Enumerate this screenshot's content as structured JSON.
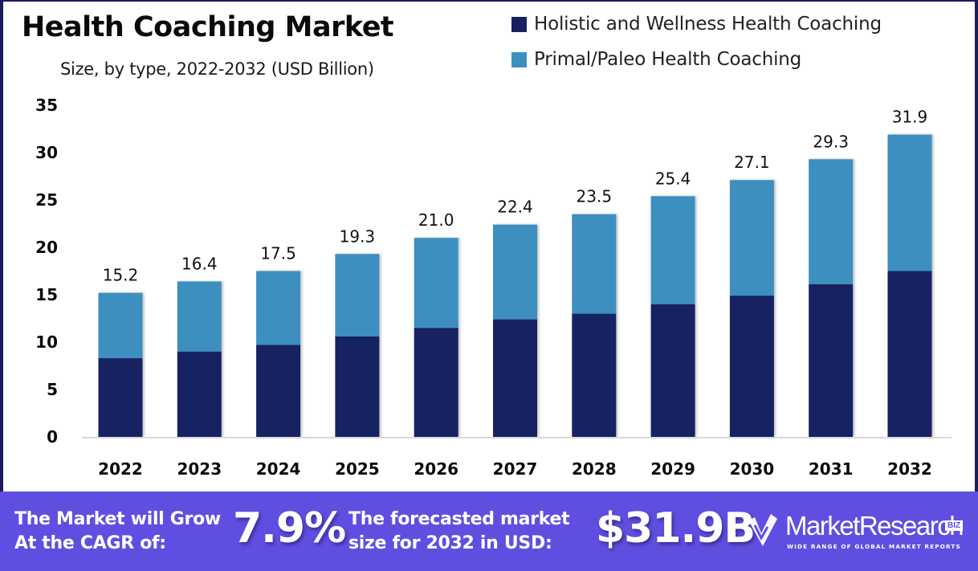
{
  "header": {
    "title": "Health Coaching Market",
    "subtitle": "Size, by type, 2022-2032 (USD Billion)"
  },
  "legend": [
    {
      "label": "Holistic and Wellness Health Coaching",
      "color": "#182062"
    },
    {
      "label": "Primal/Paleo Health Coaching",
      "color": "#3d8fc0"
    }
  ],
  "chart_data": {
    "type": "bar",
    "stacked": true,
    "title": "Health Coaching Market",
    "subtitle": "Size, by type, 2022-2032 (USD Billion)",
    "xlabel": "",
    "ylabel": "",
    "categories": [
      "2022",
      "2023",
      "2024",
      "2025",
      "2026",
      "2027",
      "2028",
      "2029",
      "2030",
      "2031",
      "2032"
    ],
    "series": [
      {
        "name": "Holistic and Wellness Health Coaching",
        "color": "#182062",
        "values": [
          8.3,
          9.0,
          9.7,
          10.6,
          11.5,
          12.4,
          13.0,
          14.0,
          14.9,
          16.1,
          17.5
        ]
      },
      {
        "name": "Primal/Paleo Health Coaching",
        "color": "#3d8fc0",
        "values": [
          6.9,
          7.4,
          7.8,
          8.7,
          9.5,
          10.0,
          10.5,
          11.4,
          12.2,
          13.2,
          14.4
        ]
      }
    ],
    "totals": [
      15.2,
      16.4,
      17.5,
      19.3,
      21.0,
      22.4,
      23.5,
      25.4,
      27.1,
      29.3,
      31.9
    ],
    "total_labels": [
      "15.2",
      "16.4",
      "17.5",
      "19.3",
      "21.0",
      "22.4",
      "23.5",
      "25.4",
      "27.1",
      "29.3",
      "31.9"
    ],
    "ylim": [
      0,
      35
    ],
    "yticks": [
      0,
      5,
      10,
      15,
      20,
      25,
      30,
      35
    ],
    "grid": false,
    "legend_position": "top-right"
  },
  "footer": {
    "cagr_text_line1": "The Market will Grow",
    "cagr_text_line2": "At the CAGR of:",
    "cagr_value": "7.9%",
    "forecast_text_line1": "The forecasted market",
    "forecast_text_line2": "size for 2032 in USD:",
    "forecast_value": "$31.9B",
    "brand_name": "MarketResearch",
    "brand_badge": "BIZ",
    "brand_tagline": "WIDE RANGE OF GLOBAL MARKET REPORTS"
  }
}
